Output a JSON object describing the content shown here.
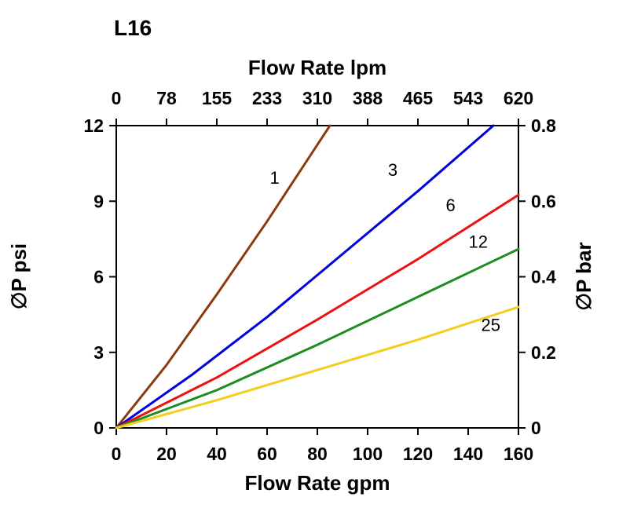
{
  "title": "L16",
  "chart_data": {
    "type": "line",
    "title": "L16",
    "grid": false,
    "axes": {
      "top": {
        "label": "Flow Rate lpm",
        "ticks": [
          "0",
          "78",
          "155",
          "233",
          "310",
          "388",
          "465",
          "543",
          "620"
        ],
        "range": [
          0,
          620
        ]
      },
      "bottom": {
        "label": "Flow Rate gpm",
        "ticks": [
          "0",
          "20",
          "40",
          "60",
          "80",
          "100",
          "120",
          "140",
          "160"
        ],
        "range": [
          0,
          160
        ]
      },
      "left": {
        "label": "∅P psi",
        "ticks": [
          "0",
          "3",
          "6",
          "9",
          "12"
        ],
        "range": [
          0,
          12
        ]
      },
      "right": {
        "label": "∅P bar",
        "ticks": [
          "0",
          "0.2",
          "0.4",
          "0.6",
          "0.8"
        ],
        "range": [
          0,
          0.8
        ]
      }
    },
    "series": [
      {
        "name": "1",
        "color": "#8b3a0e",
        "points": [
          [
            0,
            0
          ],
          [
            20,
            2.5
          ],
          [
            40,
            5.3
          ],
          [
            60,
            8.2
          ],
          [
            85,
            12
          ]
        ],
        "label_x": 63,
        "label_y": 9.7
      },
      {
        "name": "3",
        "color": "#0000dd",
        "points": [
          [
            0,
            0
          ],
          [
            30,
            2.1
          ],
          [
            60,
            4.4
          ],
          [
            90,
            6.9
          ],
          [
            120,
            9.4
          ],
          [
            150,
            12
          ]
        ],
        "label_x": 110,
        "label_y": 10.0
      },
      {
        "name": "6",
        "color": "#ee1111",
        "points": [
          [
            0,
            0
          ],
          [
            40,
            2.0
          ],
          [
            80,
            4.3
          ],
          [
            120,
            6.7
          ],
          [
            160,
            9.25
          ]
        ],
        "label_x": 133,
        "label_y": 8.6
      },
      {
        "name": "12",
        "color": "#1e8c1e",
        "points": [
          [
            0,
            0
          ],
          [
            40,
            1.5
          ],
          [
            80,
            3.3
          ],
          [
            120,
            5.2
          ],
          [
            160,
            7.1
          ]
        ],
        "label_x": 144,
        "label_y": 7.15
      },
      {
        "name": "25",
        "color": "#f2cd1c",
        "points": [
          [
            0,
            0
          ],
          [
            40,
            1.1
          ],
          [
            80,
            2.3
          ],
          [
            120,
            3.5
          ],
          [
            160,
            4.8
          ]
        ],
        "label_x": 149,
        "label_y": 3.85
      }
    ]
  }
}
